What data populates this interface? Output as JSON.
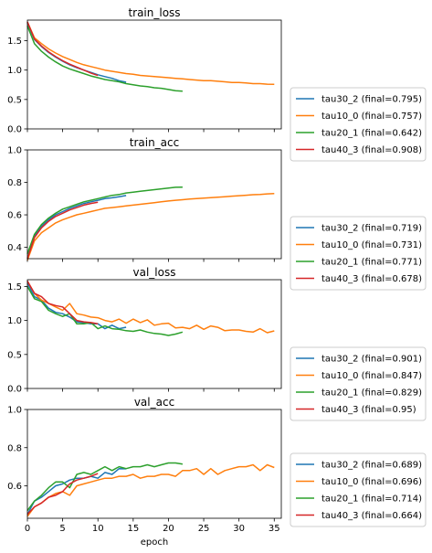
{
  "figure": {
    "xlabel": "epoch"
  },
  "colors": {
    "tau30_2": "#1f77b4",
    "tau10_0": "#ff7f0e",
    "tau20_1": "#2ca02c",
    "tau40_3": "#d62728"
  },
  "chart_data": [
    {
      "type": "line",
      "title": "train_loss",
      "xlabel": "",
      "ylabel": "",
      "xlim": [
        0,
        36
      ],
      "ylim": [
        0,
        1.85
      ],
      "xticks": [
        0,
        5,
        10,
        15,
        20,
        25,
        30,
        35
      ],
      "xtick_labels_visible": false,
      "yticks": [
        0.0,
        0.5,
        1.0,
        1.5
      ],
      "ytick_labels": [
        "0.0",
        "0.5",
        "1.0",
        "1.5"
      ],
      "grid": false,
      "legend": "right",
      "series": [
        {
          "name": "tau30_2 (final=0.795)",
          "color": "#1f77b4",
          "x": [
            0,
            1,
            2,
            3,
            4,
            5,
            6,
            7,
            8,
            9,
            10,
            11,
            12,
            13,
            14
          ],
          "y": [
            1.8,
            1.52,
            1.4,
            1.3,
            1.22,
            1.15,
            1.09,
            1.04,
            1.0,
            0.96,
            0.92,
            0.89,
            0.86,
            0.82,
            0.795
          ]
        },
        {
          "name": "tau10_0 (final=0.757)",
          "color": "#ff7f0e",
          "x": [
            0,
            1,
            2,
            3,
            4,
            5,
            6,
            7,
            8,
            9,
            10,
            11,
            12,
            13,
            14,
            15,
            16,
            17,
            18,
            19,
            20,
            21,
            22,
            23,
            24,
            25,
            26,
            27,
            28,
            29,
            30,
            31,
            32,
            33,
            34,
            35
          ],
          "y": [
            1.82,
            1.55,
            1.45,
            1.36,
            1.29,
            1.23,
            1.18,
            1.13,
            1.09,
            1.06,
            1.03,
            1.0,
            0.98,
            0.96,
            0.94,
            0.93,
            0.91,
            0.9,
            0.89,
            0.88,
            0.87,
            0.86,
            0.85,
            0.84,
            0.83,
            0.82,
            0.82,
            0.81,
            0.8,
            0.79,
            0.79,
            0.78,
            0.77,
            0.77,
            0.76,
            0.757
          ]
        },
        {
          "name": "tau20_1 (final=0.642)",
          "color": "#2ca02c",
          "x": [
            0,
            1,
            2,
            3,
            4,
            5,
            6,
            7,
            8,
            9,
            10,
            11,
            12,
            13,
            14,
            15,
            16,
            17,
            18,
            19,
            20,
            21,
            22
          ],
          "y": [
            1.75,
            1.45,
            1.32,
            1.22,
            1.14,
            1.07,
            1.02,
            0.98,
            0.94,
            0.9,
            0.87,
            0.84,
            0.82,
            0.8,
            0.77,
            0.75,
            0.73,
            0.72,
            0.7,
            0.69,
            0.67,
            0.65,
            0.642
          ]
        },
        {
          "name": "tau40_3 (final=0.908)",
          "color": "#d62728",
          "x": [
            0,
            1,
            2,
            3,
            4,
            5,
            6,
            7,
            8,
            9,
            10
          ],
          "y": [
            1.82,
            1.53,
            1.41,
            1.31,
            1.23,
            1.16,
            1.1,
            1.05,
            1.0,
            0.95,
            0.908
          ]
        }
      ]
    },
    {
      "type": "line",
      "title": "train_acc",
      "xlabel": "",
      "ylabel": "",
      "xlim": [
        0,
        36
      ],
      "ylim": [
        0.33,
        1.0
      ],
      "xticks": [
        0,
        5,
        10,
        15,
        20,
        25,
        30,
        35
      ],
      "xtick_labels_visible": false,
      "yticks": [
        0.4,
        0.6,
        0.8,
        1.0
      ],
      "ytick_labels": [
        "0.4",
        "0.6",
        "0.8",
        "1.0"
      ],
      "grid": false,
      "legend": "right",
      "series": [
        {
          "name": "tau30_2 (final=0.719)",
          "color": "#1f77b4",
          "x": [
            0,
            1,
            2,
            3,
            4,
            5,
            6,
            7,
            8,
            9,
            10,
            11,
            12,
            13,
            14
          ],
          "y": [
            0.33,
            0.47,
            0.53,
            0.57,
            0.6,
            0.62,
            0.64,
            0.655,
            0.67,
            0.68,
            0.69,
            0.7,
            0.705,
            0.712,
            0.719
          ]
        },
        {
          "name": "tau10_0 (final=0.731)",
          "color": "#ff7f0e",
          "x": [
            0,
            1,
            2,
            3,
            4,
            5,
            6,
            7,
            8,
            9,
            10,
            11,
            12,
            13,
            14,
            15,
            16,
            17,
            18,
            19,
            20,
            21,
            22,
            23,
            24,
            25,
            26,
            27,
            28,
            29,
            30,
            31,
            32,
            33,
            34,
            35
          ],
          "y": [
            0.32,
            0.44,
            0.49,
            0.52,
            0.55,
            0.57,
            0.585,
            0.6,
            0.61,
            0.62,
            0.63,
            0.64,
            0.645,
            0.65,
            0.655,
            0.66,
            0.665,
            0.67,
            0.675,
            0.68,
            0.685,
            0.69,
            0.693,
            0.697,
            0.7,
            0.703,
            0.706,
            0.709,
            0.712,
            0.715,
            0.718,
            0.721,
            0.724,
            0.726,
            0.729,
            0.731
          ]
        },
        {
          "name": "tau20_1 (final=0.771)",
          "color": "#2ca02c",
          "x": [
            0,
            1,
            2,
            3,
            4,
            5,
            6,
            7,
            8,
            9,
            10,
            11,
            12,
            13,
            14,
            15,
            16,
            17,
            18,
            19,
            20,
            21,
            22
          ],
          "y": [
            0.36,
            0.48,
            0.54,
            0.58,
            0.61,
            0.635,
            0.65,
            0.665,
            0.68,
            0.69,
            0.7,
            0.71,
            0.72,
            0.725,
            0.735,
            0.74,
            0.745,
            0.75,
            0.755,
            0.76,
            0.765,
            0.77,
            0.771
          ]
        },
        {
          "name": "tau40_3 (final=0.678)",
          "color": "#d62728",
          "x": [
            0,
            1,
            2,
            3,
            4,
            5,
            6,
            7,
            8,
            9,
            10
          ],
          "y": [
            0.33,
            0.46,
            0.52,
            0.56,
            0.59,
            0.61,
            0.63,
            0.645,
            0.66,
            0.67,
            0.678
          ]
        }
      ]
    },
    {
      "type": "line",
      "title": "val_loss",
      "xlabel": "",
      "ylabel": "",
      "xlim": [
        0,
        36
      ],
      "ylim": [
        0,
        1.6
      ],
      "xticks": [
        0,
        5,
        10,
        15,
        20,
        25,
        30,
        35
      ],
      "xtick_labels_visible": false,
      "yticks": [
        0.0,
        0.5,
        1.0,
        1.5
      ],
      "ytick_labels": [
        "0.0",
        "0.5",
        "1.0",
        "1.5"
      ],
      "grid": false,
      "legend": "right",
      "series": [
        {
          "name": "tau30_2 (final=0.901)",
          "color": "#1f77b4",
          "x": [
            0,
            1,
            2,
            3,
            4,
            5,
            6,
            7,
            8,
            9,
            10,
            11,
            12,
            13,
            14
          ],
          "y": [
            1.55,
            1.35,
            1.3,
            1.18,
            1.12,
            1.1,
            1.05,
            0.98,
            0.97,
            0.95,
            0.95,
            0.88,
            0.93,
            0.88,
            0.901
          ]
        },
        {
          "name": "tau10_0 (final=0.847)",
          "color": "#ff7f0e",
          "x": [
            0,
            1,
            2,
            3,
            4,
            5,
            6,
            7,
            8,
            9,
            10,
            11,
            12,
            13,
            14,
            15,
            16,
            17,
            18,
            19,
            20,
            21,
            22,
            23,
            24,
            25,
            26,
            27,
            28,
            29,
            30,
            31,
            32,
            33,
            34,
            35
          ],
          "y": [
            1.58,
            1.4,
            1.3,
            1.25,
            1.2,
            1.15,
            1.25,
            1.1,
            1.08,
            1.05,
            1.04,
            1.0,
            0.98,
            1.02,
            0.96,
            1.02,
            0.97,
            1.01,
            0.93,
            0.95,
            0.96,
            0.89,
            0.9,
            0.88,
            0.93,
            0.87,
            0.92,
            0.9,
            0.85,
            0.86,
            0.86,
            0.84,
            0.83,
            0.88,
            0.82,
            0.847
          ]
        },
        {
          "name": "tau20_1 (final=0.829)",
          "color": "#2ca02c",
          "x": [
            0,
            1,
            2,
            3,
            4,
            5,
            6,
            7,
            8,
            9,
            10,
            11,
            12,
            13,
            14,
            15,
            16,
            17,
            18,
            19,
            20,
            21,
            22
          ],
          "y": [
            1.5,
            1.32,
            1.28,
            1.15,
            1.1,
            1.06,
            1.1,
            0.95,
            0.95,
            0.97,
            0.88,
            0.92,
            0.88,
            0.87,
            0.85,
            0.84,
            0.86,
            0.83,
            0.81,
            0.8,
            0.78,
            0.8,
            0.829
          ]
        },
        {
          "name": "tau40_3 (final=0.95)",
          "color": "#d62728",
          "x": [
            0,
            1,
            2,
            3,
            4,
            5,
            6,
            7,
            8,
            9,
            10
          ],
          "y": [
            1.58,
            1.4,
            1.35,
            1.25,
            1.22,
            1.2,
            1.1,
            1.0,
            0.98,
            0.97,
            0.95
          ]
        }
      ]
    },
    {
      "type": "line",
      "title": "val_acc",
      "xlabel": "epoch",
      "ylabel": "",
      "xlim": [
        0,
        36
      ],
      "ylim": [
        0.43,
        1.0
      ],
      "xticks": [
        0,
        5,
        10,
        15,
        20,
        25,
        30,
        35
      ],
      "xtick_labels": [
        "0",
        "5",
        "10",
        "15",
        "20",
        "25",
        "30",
        "35"
      ],
      "yticks": [
        0.6,
        0.8,
        1.0
      ],
      "ytick_labels": [
        "0.6",
        "0.8",
        "1.0"
      ],
      "grid": false,
      "legend": "right",
      "series": [
        {
          "name": "tau30_2 (final=0.689)",
          "color": "#1f77b4",
          "x": [
            0,
            1,
            2,
            3,
            4,
            5,
            6,
            7,
            8,
            9,
            10,
            11,
            12,
            13,
            14
          ],
          "y": [
            0.45,
            0.52,
            0.54,
            0.57,
            0.6,
            0.61,
            0.63,
            0.64,
            0.64,
            0.65,
            0.64,
            0.67,
            0.66,
            0.69,
            0.689
          ]
        },
        {
          "name": "tau10_0 (final=0.696)",
          "color": "#ff7f0e",
          "x": [
            0,
            1,
            2,
            3,
            4,
            5,
            6,
            7,
            8,
            9,
            10,
            11,
            12,
            13,
            14,
            15,
            16,
            17,
            18,
            19,
            20,
            21,
            22,
            23,
            24,
            25,
            26,
            27,
            28,
            29,
            30,
            31,
            32,
            33,
            34,
            35
          ],
          "y": [
            0.44,
            0.49,
            0.51,
            0.54,
            0.56,
            0.57,
            0.55,
            0.6,
            0.61,
            0.62,
            0.63,
            0.64,
            0.64,
            0.65,
            0.65,
            0.66,
            0.64,
            0.65,
            0.65,
            0.66,
            0.66,
            0.65,
            0.68,
            0.68,
            0.69,
            0.66,
            0.69,
            0.66,
            0.68,
            0.69,
            0.7,
            0.7,
            0.71,
            0.68,
            0.71,
            0.696
          ]
        },
        {
          "name": "tau20_1 (final=0.714)",
          "color": "#2ca02c",
          "x": [
            0,
            1,
            2,
            3,
            4,
            5,
            6,
            7,
            8,
            9,
            10,
            11,
            12,
            13,
            14,
            15,
            16,
            17,
            18,
            19,
            20,
            21,
            22
          ],
          "y": [
            0.47,
            0.52,
            0.55,
            0.59,
            0.62,
            0.62,
            0.59,
            0.66,
            0.67,
            0.66,
            0.68,
            0.7,
            0.68,
            0.7,
            0.69,
            0.7,
            0.7,
            0.71,
            0.7,
            0.71,
            0.72,
            0.72,
            0.714
          ]
        },
        {
          "name": "tau40_3 (final=0.664)",
          "color": "#d62728",
          "x": [
            0,
            1,
            2,
            3,
            4,
            5,
            6,
            7,
            8,
            9,
            10
          ],
          "y": [
            0.45,
            0.49,
            0.51,
            0.54,
            0.55,
            0.57,
            0.61,
            0.63,
            0.64,
            0.65,
            0.664
          ]
        }
      ]
    }
  ]
}
